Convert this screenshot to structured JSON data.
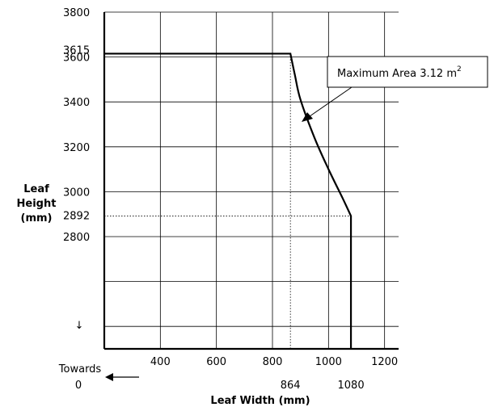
{
  "chart_data": {
    "type": "line",
    "xlabel": "Leaf Width (mm)",
    "ylabel": [
      "Leaf",
      "Height",
      "(mm)"
    ],
    "xlim": [
      200,
      1250
    ],
    "ylim": [
      2300,
      3800
    ],
    "x_ticks": [
      400,
      600,
      800,
      1000,
      1200
    ],
    "y_ticks": [
      2800,
      3000,
      3200,
      3400,
      3600,
      3800
    ],
    "grid": true,
    "reference_x_labels": [
      "864",
      "1080"
    ],
    "reference_y_labels": [
      "3615",
      "2892"
    ],
    "reference_lines": {
      "x": 864,
      "y": 2892
    },
    "series": [
      {
        "points": [
          [
            200,
            3615
          ],
          [
            864,
            3615
          ],
          [
            880,
            3520
          ],
          [
            900,
            3410
          ],
          [
            950,
            3240
          ],
          [
            1000,
            3100
          ],
          [
            1050,
            2972
          ],
          [
            1080,
            2892
          ],
          [
            1080,
            2300
          ]
        ]
      }
    ],
    "annotation": {
      "text": "Maximum Area 3.12 m",
      "superscript": "2",
      "target": [
        900,
        3400
      ]
    },
    "direction_note": {
      "down_arrow": "↓",
      "text": "Towards",
      "value": "0"
    }
  }
}
